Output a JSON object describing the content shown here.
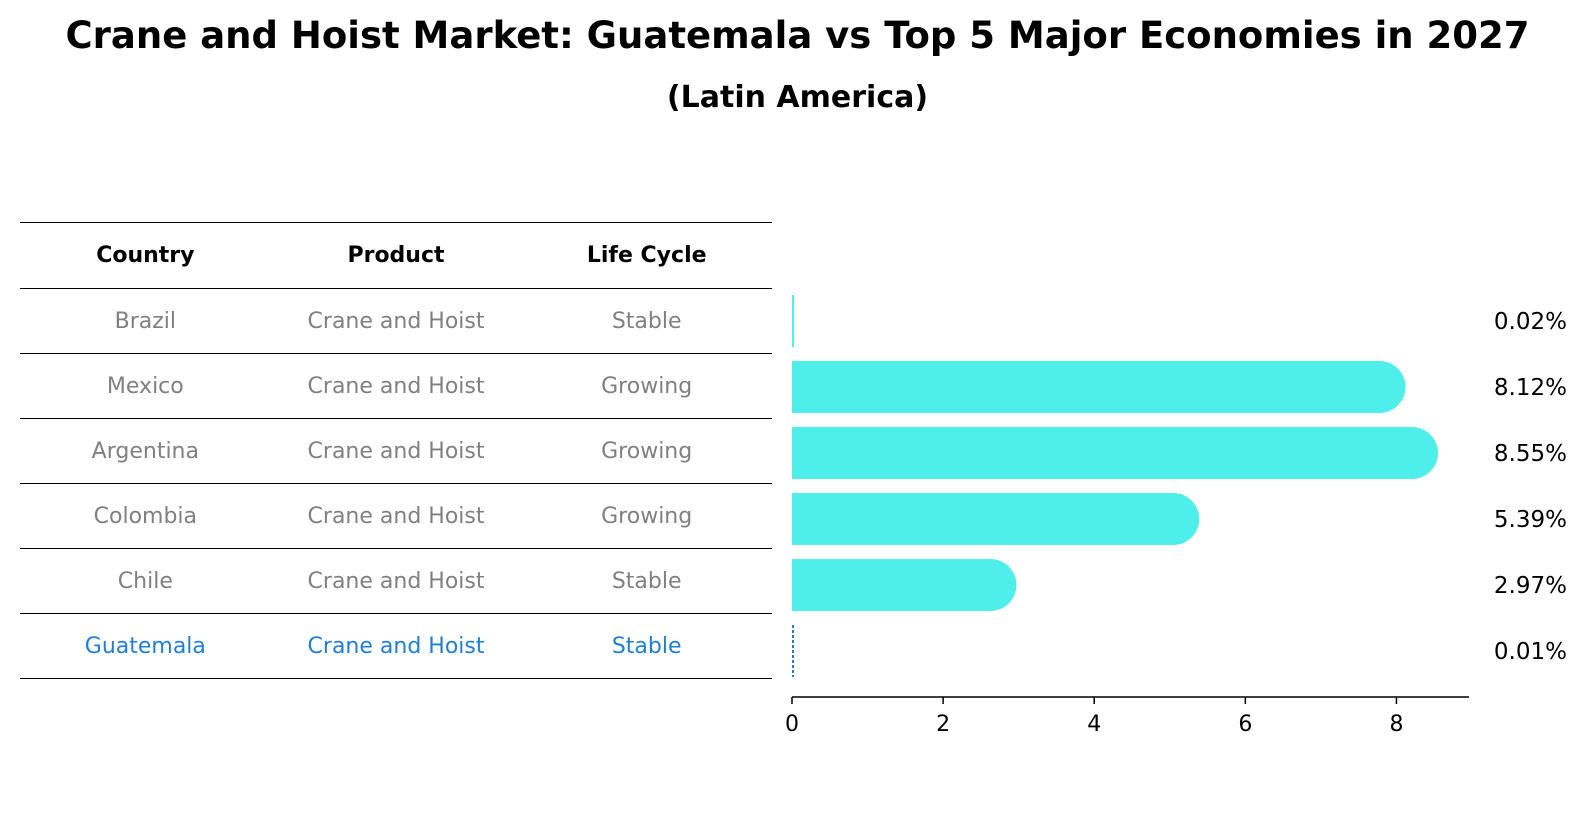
{
  "title": "Crane and Hoist Market: Guatemala vs Top 5 Major Economies in 2027",
  "subtitle": "(Latin America)",
  "table": {
    "headers": [
      "Country",
      "Product",
      "Life Cycle"
    ],
    "rows": [
      {
        "country": "Brazil",
        "product": "Crane and Hoist",
        "life_cycle": "Stable"
      },
      {
        "country": "Mexico",
        "product": "Crane and Hoist",
        "life_cycle": "Growing"
      },
      {
        "country": "Argentina",
        "product": "Crane and Hoist",
        "life_cycle": "Growing"
      },
      {
        "country": "Colombia",
        "product": "Crane and Hoist",
        "life_cycle": "Growing"
      },
      {
        "country": "Chile",
        "product": "Crane and Hoist",
        "life_cycle": "Stable"
      },
      {
        "country": "Guatemala",
        "product": "Crane and Hoist",
        "life_cycle": "Stable"
      }
    ],
    "highlight_color": "#1f7fd6",
    "text_color": "#808080"
  },
  "chart_data": {
    "type": "bar",
    "orientation": "horizontal",
    "categories": [
      "Brazil",
      "Mexico",
      "Argentina",
      "Colombia",
      "Chile",
      "Guatemala"
    ],
    "values": [
      0.02,
      8.12,
      8.55,
      5.39,
      2.97,
      0.01
    ],
    "value_labels": [
      "0.02%",
      "8.12%",
      "8.55%",
      "5.39%",
      "2.97%",
      "0.01%"
    ],
    "xlim": [
      0,
      9
    ],
    "xticks": [
      0,
      2,
      4,
      6,
      8
    ],
    "bar_color": "#4eeeea",
    "highlight_category": "Guatemala",
    "highlight_color": "#1f7fd6"
  }
}
